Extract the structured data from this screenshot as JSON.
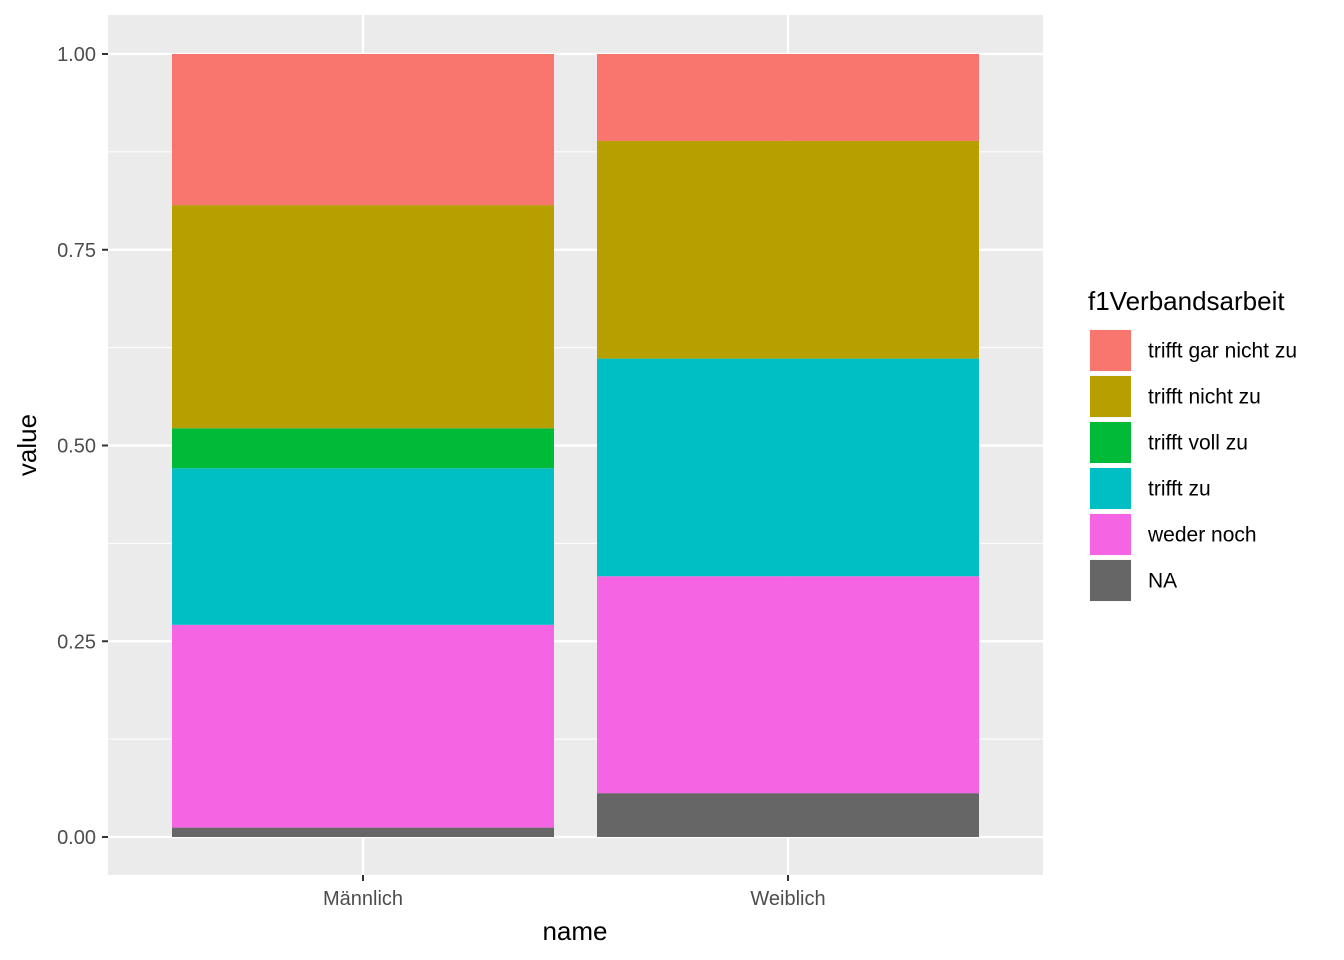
{
  "chart_data": {
    "type": "bar",
    "stacked": true,
    "categories": [
      "Männlich",
      "Weiblich"
    ],
    "xlabel": "name",
    "ylabel": "value",
    "ylim": [
      0,
      1
    ],
    "yticks": [
      "0.00",
      "0.25",
      "0.50",
      "0.75",
      "1.00"
    ],
    "yticks_values": [
      0,
      0.25,
      0.5,
      0.75,
      1.0
    ],
    "grid": true,
    "legend": {
      "title": "f1Verbandsarbeit",
      "position": "right"
    },
    "series": [
      {
        "name": "trifft gar nicht zu",
        "color": "#F8766D",
        "values": [
          0.193,
          0.111
        ]
      },
      {
        "name": "trifft nicht zu",
        "color": "#B79F00",
        "values": [
          0.285,
          0.278
        ]
      },
      {
        "name": "trifft voll zu",
        "color": "#00BA38",
        "values": [
          0.051,
          0.0
        ]
      },
      {
        "name": "trifft zu",
        "color": "#00BFC4",
        "values": [
          0.2,
          0.278
        ]
      },
      {
        "name": "weder noch",
        "color": "#F564E3",
        "values": [
          0.259,
          0.277
        ]
      },
      {
        "name": "NA",
        "color": "#666666",
        "values": [
          0.012,
          0.056
        ]
      }
    ]
  }
}
